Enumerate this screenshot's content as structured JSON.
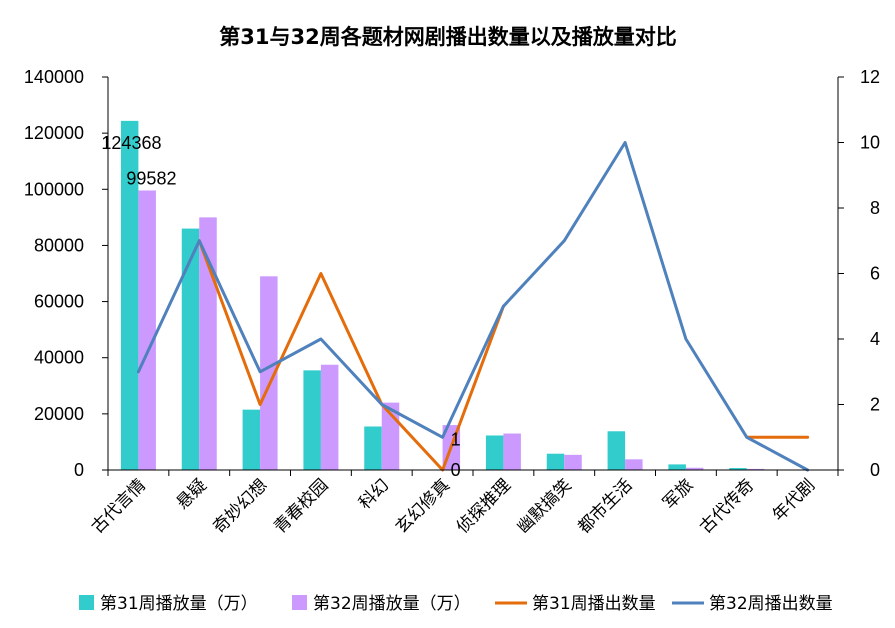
{
  "chart_data": {
    "type": "bar",
    "title": "第31与32周各题材网剧播出数量以及播放量对比",
    "categories": [
      "古代言情",
      "悬疑",
      "奇妙幻想",
      "青春校园",
      "科幻",
      "玄幻修真",
      "侦探推理",
      "幽默搞笑",
      "都市生活",
      "军旅",
      "古代传奇",
      "年代剧"
    ],
    "y_left": {
      "min": 0,
      "max": 140000,
      "ticks": [
        "0",
        "20000",
        "40000",
        "60000",
        "80000",
        "100000",
        "120000",
        "140000"
      ]
    },
    "y_right": {
      "min": 0,
      "max": 12,
      "ticks": [
        "0",
        "2",
        "4",
        "6",
        "8",
        "10",
        "12"
      ]
    },
    "grid": false,
    "legend_position": "bottom",
    "series": [
      {
        "name": "第31周播放量（万）",
        "kind": "bar",
        "axis": "left",
        "color": "#33CCCC",
        "values": [
          124368,
          86000,
          21500,
          35500,
          15500,
          0,
          12300,
          5800,
          13800,
          2000,
          700,
          0
        ]
      },
      {
        "name": "第32周播放量（万）",
        "kind": "bar",
        "axis": "left",
        "color": "#CC99FF",
        "values": [
          99582,
          90000,
          69000,
          37500,
          24000,
          16000,
          13000,
          5400,
          3800,
          800,
          400,
          0
        ]
      },
      {
        "name": "第31周播出数量",
        "kind": "line",
        "axis": "right",
        "color": "#E46C0A",
        "values": [
          null,
          7,
          2,
          6,
          2,
          0,
          5,
          null,
          null,
          null,
          1,
          1
        ]
      },
      {
        "name": "第32周播出数量",
        "kind": "line",
        "axis": "right",
        "color": "#4F81BD",
        "values": [
          3,
          7,
          3,
          4,
          2,
          1,
          5,
          7,
          10,
          4,
          1,
          0
        ]
      }
    ],
    "data_labels": [
      "124368",
      "99582",
      "1",
      "0"
    ]
  }
}
